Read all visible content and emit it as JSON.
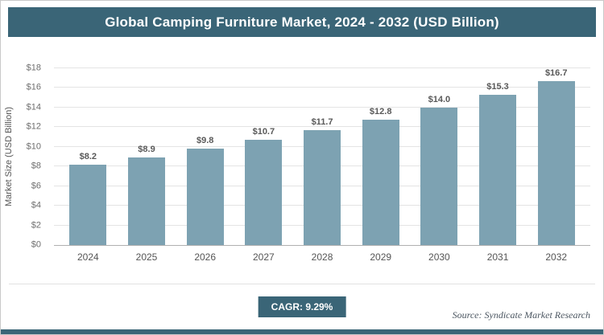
{
  "title": "Global Camping Furniture Market, 2024 - 2032 (USD Billion)",
  "footer": {
    "cagr_label": "CAGR: 9.29%",
    "source": "Source: Syndicate Market Research"
  },
  "colors": {
    "accent": "#3a6577",
    "bar": "#7da2b2",
    "grid": "#e4e4e4"
  },
  "chart_data": {
    "type": "bar",
    "title": "Global Camping Furniture Market, 2024 - 2032 (USD Billion)",
    "categories": [
      "2024",
      "2025",
      "2026",
      "2027",
      "2028",
      "2029",
      "2030",
      "2031",
      "2032"
    ],
    "values": [
      8.2,
      8.9,
      9.8,
      10.7,
      11.7,
      12.8,
      14.0,
      15.3,
      16.7
    ],
    "bar_labels": [
      "$8.2",
      "$8.9",
      "$9.8",
      "$10.7",
      "$11.7",
      "$12.8",
      "$14.0",
      "$15.3",
      "$16.7"
    ],
    "xlabel": "",
    "ylabel": "Market Size (USD Billion)",
    "ylim": [
      0,
      18
    ],
    "yticks": [
      0,
      2,
      4,
      6,
      8,
      10,
      12,
      14,
      16,
      18
    ],
    "ytick_labels": [
      "$0",
      "$2",
      "$4",
      "$6",
      "$8",
      "$10",
      "$12",
      "$14",
      "$16",
      "$18"
    ],
    "grid": true,
    "legend": false,
    "bar_color": "#7da2b2",
    "annotation": "CAGR: 9.29%"
  }
}
